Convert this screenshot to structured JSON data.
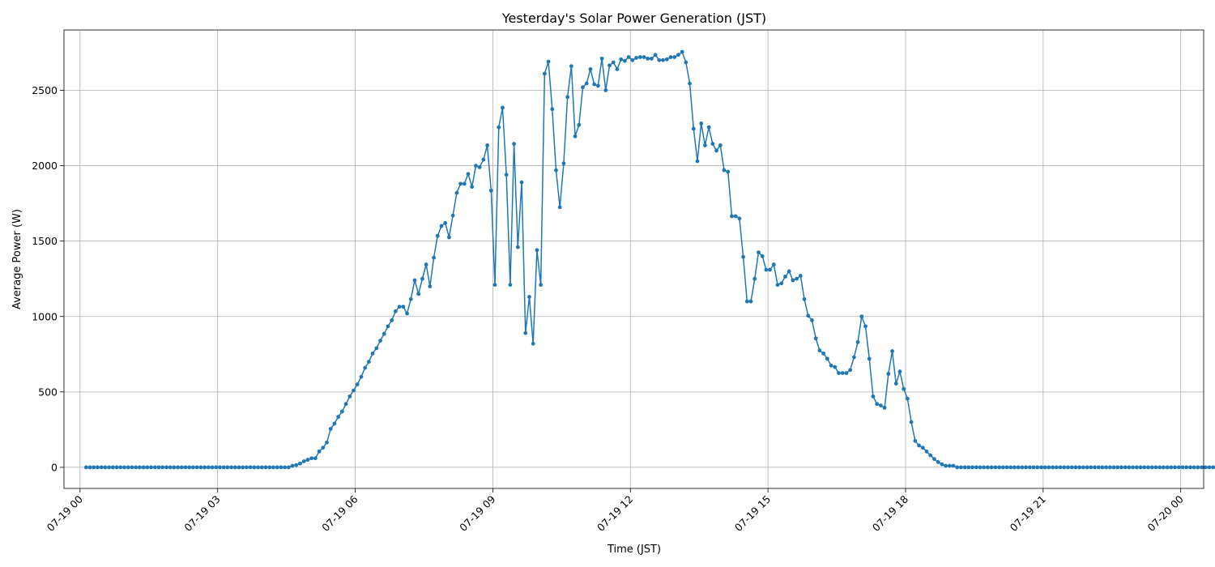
{
  "chart_data": {
    "type": "line",
    "title": "Yesterday's Solar Power Generation (JST)",
    "xlabel": "Time (JST)",
    "ylabel": "Average Power (W)",
    "xlim": [
      -0.35,
      24.5
    ],
    "ylim": [
      -140,
      2900
    ],
    "grid": true,
    "x_ticks": [
      {
        "value": 0,
        "label": "07-19 00"
      },
      {
        "value": 3,
        "label": "07-19 03"
      },
      {
        "value": 6,
        "label": "07-19 06"
      },
      {
        "value": 9,
        "label": "07-19 09"
      },
      {
        "value": 12,
        "label": "07-19 12"
      },
      {
        "value": 15,
        "label": "07-19 15"
      },
      {
        "value": 18,
        "label": "07-19 18"
      },
      {
        "value": 21,
        "label": "07-19 21"
      },
      {
        "value": 24,
        "label": "07-20 00"
      }
    ],
    "y_ticks": [
      {
        "value": 0,
        "label": "0"
      },
      {
        "value": 500,
        "label": "500"
      },
      {
        "value": 1000,
        "label": "1000"
      },
      {
        "value": 1500,
        "label": "1500"
      },
      {
        "value": 2000,
        "label": "2000"
      },
      {
        "value": 2500,
        "label": "2500"
      }
    ],
    "series": [
      {
        "x_start": 0.1333,
        "x_step": 0.0833,
        "values": [
          0,
          0,
          0,
          0,
          0,
          0,
          0,
          0,
          0,
          0,
          0,
          0,
          0,
          0,
          0,
          0,
          0,
          0,
          0,
          0,
          0,
          0,
          0,
          0,
          0,
          0,
          0,
          0,
          0,
          0,
          0,
          0,
          0,
          0,
          0,
          0,
          0,
          0,
          0,
          0,
          0,
          0,
          0,
          0,
          0,
          0,
          0,
          0,
          0,
          0,
          0,
          0,
          0,
          0,
          10,
          15,
          25,
          40,
          50,
          60,
          60,
          105,
          130,
          165,
          255,
          290,
          335,
          370,
          420,
          470,
          510,
          550,
          600,
          660,
          700,
          755,
          790,
          840,
          885,
          935,
          975,
          1035,
          1065,
          1065,
          1020,
          1115,
          1240,
          1150,
          1250,
          1345,
          1200,
          1390,
          1535,
          1600,
          1620,
          1525,
          1670,
          1820,
          1880,
          1880,
          1945,
          1860,
          2000,
          1990,
          2040,
          2135,
          1835,
          1210,
          2255,
          2385,
          1940,
          1210,
          2145,
          1460,
          1890,
          890,
          1130,
          820,
          1440,
          1210,
          2610,
          2690,
          2375,
          1970,
          1725,
          2015,
          2455,
          2660,
          2195,
          2270,
          2520,
          2545,
          2640,
          2540,
          2530,
          2710,
          2500,
          2665,
          2685,
          2640,
          2705,
          2695,
          2720,
          2700,
          2715,
          2720,
          2720,
          2710,
          2710,
          2735,
          2700,
          2700,
          2705,
          2720,
          2720,
          2735,
          2755,
          2685,
          2545,
          2245,
          2030,
          2280,
          2135,
          2255,
          2145,
          2100,
          2135,
          1970,
          1960,
          1665,
          1665,
          1650,
          1395,
          1100,
          1100,
          1250,
          1425,
          1400,
          1310,
          1310,
          1345,
          1210,
          1220,
          1265,
          1300,
          1240,
          1250,
          1270,
          1115,
          1005,
          975,
          855,
          775,
          755,
          720,
          675,
          665,
          625,
          625,
          625,
          645,
          730,
          830,
          1000,
          935,
          720,
          470,
          420,
          410,
          395,
          620,
          770,
          555,
          635,
          520,
          455,
          300,
          175,
          145,
          130,
          105,
          80,
          55,
          35,
          20,
          10,
          10,
          10,
          0,
          0,
          0,
          0,
          0,
          0,
          0,
          0,
          0,
          0,
          0,
          0,
          0,
          0,
          0,
          0,
          0,
          0,
          0,
          0,
          0,
          0,
          0,
          0,
          0,
          0,
          0,
          0,
          0,
          0,
          0,
          0,
          0,
          0,
          0,
          0,
          0,
          0,
          0,
          0,
          0,
          0,
          0,
          0,
          0,
          0,
          0,
          0,
          0,
          0,
          0,
          0,
          0,
          0,
          0,
          0,
          0,
          0,
          0,
          0,
          0,
          0,
          0,
          0,
          0,
          0,
          0,
          0,
          0,
          0,
          0,
          0,
          0,
          0,
          0,
          0
        ]
      }
    ]
  }
}
